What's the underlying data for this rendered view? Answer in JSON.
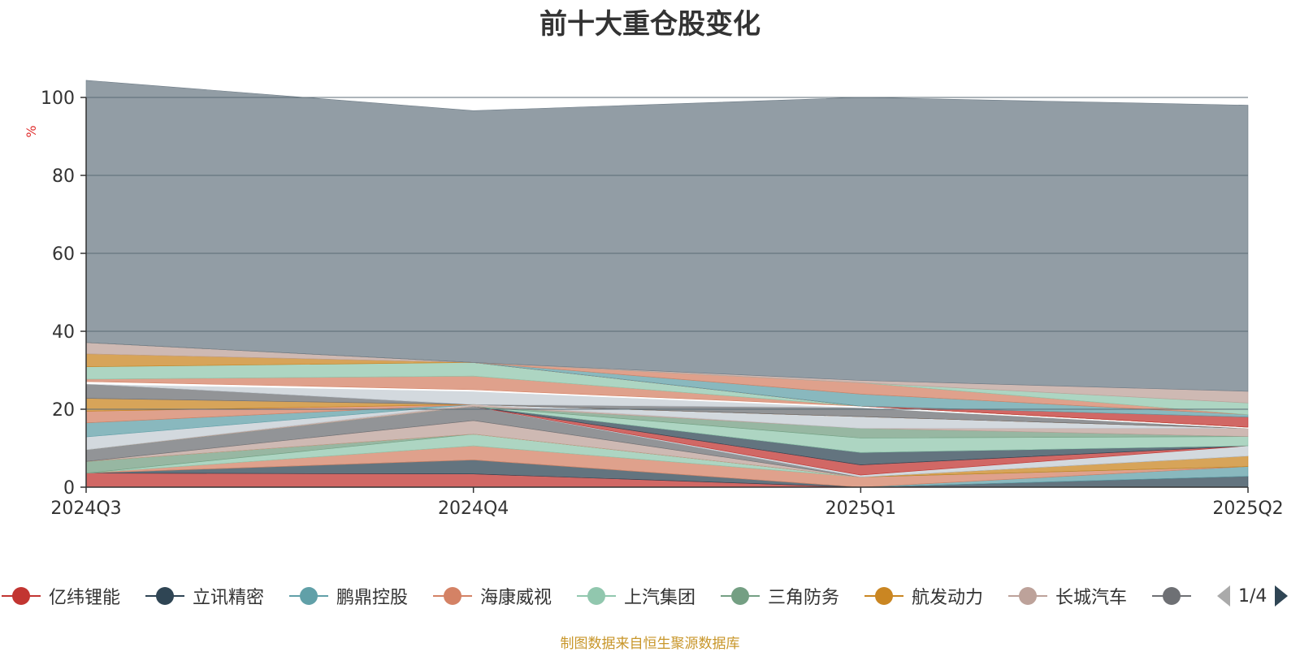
{
  "title": "前十大重仓股变化",
  "source_note": "制图数据来自恒生聚源数据库",
  "legend_pager": "1/4",
  "chart_data": {
    "type": "area",
    "stacked": true,
    "x": [
      "2024Q3",
      "2024Q4",
      "2025Q1",
      "2025Q2"
    ],
    "ylabel": "%",
    "ylim": [
      0,
      100
    ],
    "yticks": [
      0,
      20,
      40,
      60,
      80,
      100
    ],
    "grid": true,
    "legend_placement": "bottom",
    "series": [
      {
        "name": "亿纬锂能",
        "color": "#c23531",
        "values": [
          3.6,
          3.4,
          0,
          0
        ]
      },
      {
        "name": "立讯精密",
        "color": "#2f4554",
        "values": [
          0,
          3.6,
          0,
          2.8
        ]
      },
      {
        "name": "鹏鼎控股",
        "color": "#61a0a8",
        "values": [
          0,
          0,
          0,
          2.5
        ]
      },
      {
        "name": "海康威视",
        "color": "#d48265",
        "values": [
          0,
          3.6,
          2.6,
          0
        ]
      },
      {
        "name": "上汽集团",
        "color": "#91c7ae",
        "values": [
          0,
          3.0,
          0,
          0
        ]
      },
      {
        "name": "三角防务",
        "color": "#749f83",
        "values": [
          3.0,
          0,
          0,
          0
        ]
      },
      {
        "name": "航发动力",
        "color": "#ca8622",
        "values": [
          0,
          0,
          0,
          2.7
        ]
      },
      {
        "name": "长城汽车",
        "color": "#bda29a",
        "values": [
          0,
          3.5,
          0,
          0
        ]
      },
      {
        "color": "#6e7074",
        "values": [
          3.0,
          3.6,
          0,
          0
        ]
      },
      {
        "color": "#c4ccd3",
        "values": [
          0,
          0,
          0.5,
          2.6
        ]
      },
      {
        "color": "#c23531",
        "values": [
          0,
          0,
          2.6,
          0
        ]
      },
      {
        "color": "#2f4554",
        "values": [
          0,
          0,
          3.2,
          0
        ]
      },
      {
        "color": "#91c7ae",
        "values": [
          0,
          0,
          3.7,
          2.4
        ]
      },
      {
        "color": "#749f83",
        "values": [
          0,
          0,
          2.5,
          0
        ]
      },
      {
        "color": "#bda29a",
        "values": [
          0,
          0.5,
          0,
          2.1
        ]
      },
      {
        "color": "#c4ccd3",
        "values": [
          3.3,
          0,
          3.0,
          0
        ]
      },
      {
        "color": "#61a0a8",
        "values": [
          3.6,
          0,
          0,
          0
        ]
      },
      {
        "color": "#d48265",
        "values": [
          3.0,
          0,
          0,
          0
        ]
      },
      {
        "color": "#ca8622",
        "values": [
          3.3,
          0,
          0,
          0
        ]
      },
      {
        "color": "#bda29a",
        "values": [
          0,
          0,
          0,
          0
        ]
      },
      {
        "color": "#6e7074",
        "values": [
          3.7,
          0,
          2.3,
          0
        ]
      },
      {
        "color": "#c4ccd3",
        "values": [
          0,
          3.4,
          0,
          0
        ]
      },
      {
        "color": "#ffffff",
        "values": [
          0.6,
          0.4,
          0.4,
          0.3
        ]
      },
      {
        "color": "#d48265",
        "values": [
          0.6,
          3.5,
          0,
          0
        ]
      },
      {
        "color": "#91c7ae",
        "values": [
          3.2,
          3.5,
          0,
          0
        ]
      },
      {
        "color": "#ca8622",
        "values": [
          3.3,
          0,
          0,
          0
        ]
      },
      {
        "color": "#bda29a",
        "values": [
          2.9,
          0,
          0,
          0
        ]
      },
      {
        "color": "#c23531",
        "values": [
          0,
          0,
          0,
          2.6
        ]
      },
      {
        "color": "#61a0a8",
        "values": [
          0,
          0,
          3.1,
          0.6
        ]
      },
      {
        "color": "#d48265",
        "values": [
          0,
          0,
          2.9,
          0
        ]
      },
      {
        "color": "#91c7ae",
        "values": [
          0,
          0,
          0,
          3.0
        ]
      },
      {
        "color": "#bda29a",
        "values": [
          0,
          0,
          0.6,
          3.0
        ]
      },
      {
        "color": "#6e7c87",
        "values": [
          67.3,
          64.6,
          72.6,
          73.4
        ]
      }
    ]
  }
}
